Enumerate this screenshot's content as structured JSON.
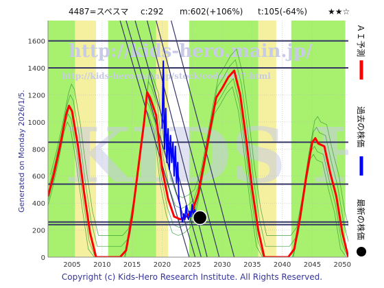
{
  "header": {
    "code_name": "4487=スペスマ",
    "current": "c:292",
    "max": "m:602(+106%)",
    "target": "t:105(-64%)",
    "stars": "★★☆"
  },
  "side_text": "Generated on Monday 2026/1/5.",
  "watermark": {
    "url_top": "http://kids-hero.main.jp/",
    "url_bottom": "http://kids-hero.main.jp/stock/code4487.html",
    "letters": "KIDS HERO"
  },
  "legend": {
    "ai_forecast": "ＡＩ予測",
    "past_price": "過去の株価",
    "latest_price": "最新の株価"
  },
  "copyright": "Copyright (c) Kids-Hero Research Institute. All Rights Reserved.",
  "colors": {
    "forecast": "#ff0000",
    "past": "#0000ff",
    "hlines": "#333366",
    "trend": "#333366",
    "band": "#99ee55",
    "band_yellow": "#f5f0a0",
    "inner_green": "#339933"
  },
  "chart_data": {
    "type": "line",
    "xlim": [
      2001,
      2051
    ],
    "ylim": [
      0,
      1750
    ],
    "x_ticks": [
      2005,
      2010,
      2015,
      2020,
      2025,
      2030,
      2035,
      2040,
      2045,
      2050
    ],
    "y_ticks": [
      0,
      200,
      400,
      600,
      800,
      1000,
      1200,
      1400,
      1600
    ],
    "horizontal_lines": [
      1600,
      1400,
      850,
      540,
      260,
      240
    ],
    "green_bands": [
      [
        2001,
        2005.5
      ],
      [
        2011,
        2019
      ],
      [
        2024.5,
        2036
      ],
      [
        2041.5,
        2050.5
      ]
    ],
    "yellow_bands": [
      [
        2005.5,
        2009
      ],
      [
        2019,
        2021
      ],
      [
        2036,
        2039
      ]
    ],
    "series": [
      {
        "kind": "forecast",
        "x": [
          2001,
          2002,
          2003,
          2004,
          2004.5,
          2005,
          2006,
          2007,
          2008,
          2009,
          2010,
          2011,
          2012,
          2013,
          2014,
          2015,
          2016,
          2017,
          2017.5,
          2018,
          2019,
          2020,
          2021,
          2022,
          2023,
          2024,
          2025,
          2026,
          2027,
          2028,
          2029,
          2030,
          2031,
          2032,
          2033,
          2034,
          2035,
          2036,
          2037,
          2038,
          2039,
          2040,
          2041,
          2042,
          2043,
          2044,
          2045,
          2045.5,
          2046,
          2047,
          2048,
          2049,
          2050,
          2051
        ],
        "y": [
          450,
          620,
          820,
          1050,
          1120,
          1080,
          820,
          480,
          180,
          0,
          0,
          0,
          0,
          0,
          50,
          300,
          650,
          1000,
          1220,
          1180,
          1050,
          650,
          430,
          300,
          280,
          300,
          340,
          470,
          700,
          950,
          1180,
          1250,
          1330,
          1380,
          1200,
          870,
          500,
          200,
          0,
          0,
          0,
          0,
          0,
          60,
          300,
          600,
          850,
          880,
          840,
          820,
          620,
          450,
          180,
          0
        ]
      },
      {
        "kind": "past",
        "x": [
          2020,
          2020.2,
          2020.4,
          2020.6,
          2020.8,
          2021,
          2021.2,
          2021.4,
          2021.6,
          2021.8,
          2022,
          2022.2,
          2022.4,
          2022.6,
          2022.8,
          2023,
          2023.2,
          2023.4,
          2023.6,
          2023.8,
          2024,
          2024.2,
          2024.4,
          2024.6,
          2024.8,
          2025,
          2025.2,
          2025.4,
          2025.6,
          2025.8,
          2026
        ],
        "y": [
          950,
          1450,
          800,
          1100,
          700,
          950,
          650,
          900,
          700,
          850,
          600,
          820,
          550,
          700,
          420,
          380,
          300,
          260,
          320,
          280,
          380,
          300,
          280,
          340,
          300,
          390,
          300,
          350,
          310,
          300,
          292
        ]
      }
    ],
    "latest_point": {
      "x": 2026.3,
      "y": 292
    },
    "trend_lines": [
      [
        [
          2013,
          1750
        ],
        [
          2024.5,
          0
        ]
      ],
      [
        [
          2014,
          1750
        ],
        [
          2025.5,
          0
        ]
      ],
      [
        [
          2015.5,
          1750
        ],
        [
          2026.5,
          0
        ]
      ],
      [
        [
          2017.5,
          1750
        ],
        [
          2027.5,
          0
        ]
      ],
      [
        [
          2019,
          1750
        ],
        [
          2029.5,
          0
        ]
      ],
      [
        [
          2021.5,
          1750
        ],
        [
          2032,
          0
        ]
      ]
    ]
  }
}
